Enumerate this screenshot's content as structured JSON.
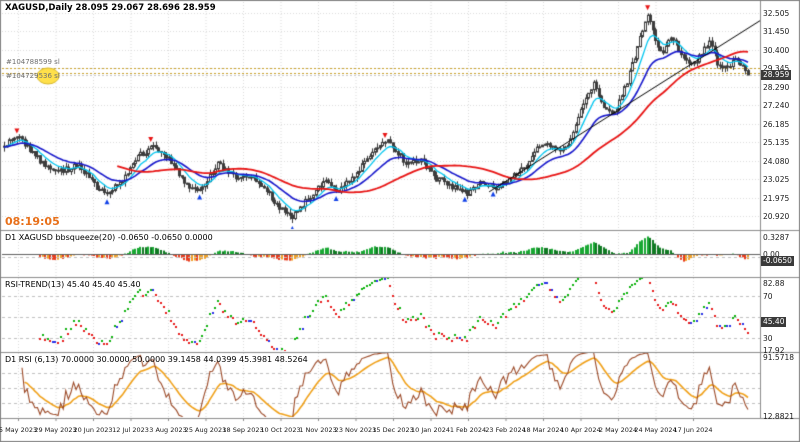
{
  "title": {
    "symbol": "XAGUSD,Daily",
    "ohlc": "28.095 29.067 28.696 28.959"
  },
  "clock": {
    "text": "08:19:05",
    "color": "#E8701A"
  },
  "colors": {
    "background": "#FFFFFF",
    "grid": "#DADADA",
    "separator": "#8C8C8C",
    "candle_stroke": "#3C3C3C",
    "candle_up_fill": "#FFFFFF",
    "candle_down_fill": "#3C3C3C",
    "ma_fast": "#00C6F0",
    "ma_mid": "#1818CC",
    "ma_slow": "#E81414",
    "trendline": "#000000",
    "order_line": "#C8A028",
    "bid_line": "#C8C8C8",
    "price_box_bg": "#3A3A3A",
    "hist_pos": "#18A832",
    "hist_pos_dim": "#0F7A22",
    "hist_neg": "#E83C1E",
    "hist_neg_dim": "#F0A028",
    "dot_up": "#10B410",
    "dot_down": "#E81E1E",
    "dot_flat": "#2830E8",
    "rsi_main": "#9C4A28",
    "rsi_signal": "#F0A018",
    "level_dash": "#C0C0C0",
    "arrow_up": "#1040E8",
    "arrow_down": "#E81414",
    "smiley": "#FFE04A",
    "smiley_edge": "#D8B82A"
  },
  "main_chart": {
    "price_box": "28.959",
    "orders": [
      {
        "label": "#104788599 sl",
        "price": 29.34
      },
      {
        "label": "#104729536 sl",
        "price": 29.07
      }
    ],
    "bid_price": 28.959,
    "signals": {
      "up_fracs": [
        0.138,
        0.262,
        0.386,
        0.447,
        0.62,
        0.657
      ],
      "down_fracs": [
        0.018,
        0.197,
        0.513,
        0.866
      ]
    }
  },
  "indicator_panes": {
    "squeeze": {
      "label": "D1 XAGUSD bbsqueeze(20) -0.0650 -0.0650 0.0000",
      "labels_right": [
        "0.3287",
        "0.00"
      ],
      "value_box": "-0.0650",
      "scale_top": 0.3287,
      "level": -0.065
    },
    "rsi_trend": {
      "label": "RSI-TREND(13) 45.40 45.40 45.40",
      "labels_right": [
        "82.88",
        "70",
        "30",
        "17.92"
      ],
      "label_values": [
        82.88,
        70,
        30,
        17.92
      ],
      "value_box": "45.40",
      "value": 45.4,
      "range": [
        17.92,
        82.88
      ],
      "levels": [
        70,
        50,
        30
      ]
    },
    "rsi": {
      "label": "D1 RSI (6,13) 70.0000 30.0000 50.0000 39.1458 44.0399 45.3981 48.5264",
      "labels_right": [
        "91.5718",
        "12.8821"
      ],
      "label_values": [
        91.5718,
        12.8821
      ],
      "range": [
        12.8821,
        91.5718
      ],
      "levels": [
        70,
        50,
        30
      ]
    }
  },
  "chart_data": {
    "type": "candlestick",
    "title": "XAGUSD Daily",
    "symbol": "XAGUSD",
    "timeframe": "Daily",
    "last_close": 28.959,
    "x_axis": {
      "labels": [
        "5 May 2023",
        "29 May 2023",
        "20 Jun 2023",
        "12 Jul 2023",
        "3 Aug 2023",
        "25 Aug 2023",
        "18 Sep 2023",
        "10 Oct 2023",
        "1 Nov 2023",
        "23 Nov 2023",
        "15 Dec 2023",
        "10 Jan 2024",
        "1 Feb 2024",
        "23 Feb 2024",
        "18 Mar 2024",
        "10 Apr 2024",
        "2 May 2024",
        "24 May 2024",
        "17 Jun 2024"
      ]
    },
    "y_axis": {
      "min": 20.3,
      "max": 33.0,
      "labels": [
        "32.505",
        "31.450",
        "30.400",
        "29.345",
        "28.290",
        "27.240",
        "26.185",
        "25.135",
        "24.080",
        "23.025",
        "21.975",
        "20.920"
      ]
    },
    "series": {
      "name": "XAGUSD close path (frac of range, price)",
      "anchors_frac_price": [
        [
          0.0,
          25.0
        ],
        [
          0.018,
          25.45
        ],
        [
          0.05,
          24.0
        ],
        [
          0.072,
          23.4
        ],
        [
          0.1,
          23.8
        ],
        [
          0.125,
          22.5
        ],
        [
          0.14,
          22.2
        ],
        [
          0.16,
          23.0
        ],
        [
          0.18,
          24.3
        ],
        [
          0.2,
          24.9
        ],
        [
          0.22,
          24.3
        ],
        [
          0.245,
          22.6
        ],
        [
          0.265,
          22.4
        ],
        [
          0.288,
          23.9
        ],
        [
          0.31,
          23.1
        ],
        [
          0.33,
          23.15
        ],
        [
          0.35,
          22.5
        ],
        [
          0.372,
          21.3
        ],
        [
          0.388,
          20.9
        ],
        [
          0.41,
          22.0
        ],
        [
          0.43,
          22.9
        ],
        [
          0.448,
          22.3
        ],
        [
          0.468,
          23.1
        ],
        [
          0.49,
          24.3
        ],
        [
          0.515,
          25.4
        ],
        [
          0.54,
          23.9
        ],
        [
          0.56,
          24.2
        ],
        [
          0.58,
          23.1
        ],
        [
          0.602,
          22.6
        ],
        [
          0.622,
          22.2
        ],
        [
          0.642,
          22.9
        ],
        [
          0.658,
          22.5
        ],
        [
          0.675,
          22.9
        ],
        [
          0.695,
          23.5
        ],
        [
          0.715,
          24.7
        ],
        [
          0.73,
          25.1
        ],
        [
          0.748,
          24.7
        ],
        [
          0.762,
          25.2
        ],
        [
          0.778,
          27.3
        ],
        [
          0.792,
          28.5
        ],
        [
          0.806,
          27.2
        ],
        [
          0.82,
          26.8
        ],
        [
          0.835,
          28.3
        ],
        [
          0.848,
          30.0
        ],
        [
          0.858,
          31.6
        ],
        [
          0.866,
          32.35
        ],
        [
          0.876,
          30.8
        ],
        [
          0.886,
          30.3
        ],
        [
          0.898,
          31.2
        ],
        [
          0.91,
          30.1
        ],
        [
          0.922,
          29.5
        ],
        [
          0.935,
          30.0
        ],
        [
          0.948,
          30.9
        ],
        [
          0.96,
          29.5
        ],
        [
          0.972,
          29.3
        ],
        [
          0.984,
          29.9
        ],
        [
          1.0,
          28.959
        ]
      ]
    },
    "overlays": [
      {
        "name": "ma-fast",
        "kind": "ema",
        "period": 8
      },
      {
        "name": "ma-mid",
        "kind": "ema",
        "period": 21
      },
      {
        "name": "ma-slow",
        "kind": "sma",
        "period": 45
      },
      {
        "name": "trendline",
        "x1_frac": 0.652,
        "price1": 22.3,
        "x2_frac": 1.018,
        "price2": 32.1
      }
    ],
    "panes": [
      {
        "type": "bar",
        "name": "bbsqueeze(20)",
        "current": -0.065,
        "scale_top": 0.3287
      },
      {
        "type": "scatter",
        "name": "RSI-TREND(13)",
        "current": 45.4,
        "range": [
          17.92,
          82.88
        ]
      },
      {
        "type": "line",
        "name": "RSI(6,13)",
        "current_values": [
          39.1458,
          44.0399,
          45.3981,
          48.5264
        ],
        "range": [
          12.8821,
          91.5718
        ]
      }
    ]
  }
}
